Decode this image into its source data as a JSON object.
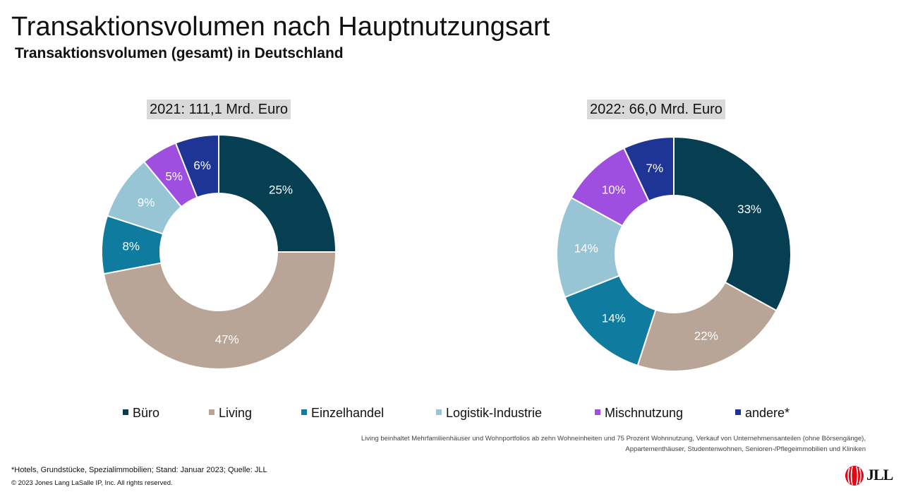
{
  "header": {
    "title": "Transaktionsvolumen nach Hauptnutzungsart",
    "subtitle": "Transaktionsvolumen (gesamt) in Deutschland"
  },
  "chart_data": [
    {
      "type": "pie",
      "donut": true,
      "title": "2021: 111,1 Mrd. Euro",
      "categories": [
        "Büro",
        "Living",
        "Einzelhandel",
        "Logistik-Industrie",
        "Mischnutzung",
        "andere*"
      ],
      "values": [
        25,
        47,
        8,
        9,
        5,
        6
      ],
      "labels": [
        "25%",
        "47%",
        "8%",
        "9%",
        "5%",
        "6%"
      ],
      "unit": "%"
    },
    {
      "type": "pie",
      "donut": true,
      "title": "2022: 66,0 Mrd. Euro",
      "categories": [
        "Büro",
        "Living",
        "Einzelhandel",
        "Logistik-Industrie",
        "Mischnutzung",
        "andere*"
      ],
      "values": [
        33,
        22,
        14,
        14,
        10,
        7
      ],
      "labels": [
        "33%",
        "22%",
        "14%",
        "14%",
        "10%",
        "7%"
      ],
      "unit": "%"
    }
  ],
  "legend": {
    "placement": "bottom",
    "items": [
      {
        "label": "Büro",
        "color": "#063f52"
      },
      {
        "label": "Living",
        "color": "#b9a597"
      },
      {
        "label": "Einzelhandel",
        "color": "#0f7b9e"
      },
      {
        "label": "Logistik-Industrie",
        "color": "#97c5d5"
      },
      {
        "label": "Mischnutzung",
        "color": "#9e4fe0"
      },
      {
        "label": "andere*",
        "color": "#1e3596"
      }
    ]
  },
  "note": {
    "line1": "Living beinhaltet Mehrfamilienhäuser und Wohnportfolios ab zehn Wohneinheiten und 75 Prozent Wohnnutzung, Verkauf von Unternehmensanteilen (ohne Börsengänge),",
    "line2": "Appartementhäuser, Studentenwohnen, Senioren-/Pflegeimmobilien und Kliniken"
  },
  "footer": {
    "footnote": "*Hotels, Grundstücke, Spezialimmobilien; Stand: Januar 2023; Quelle: JLL",
    "copyright": "© 2023 Jones Lang LaSalle IP, Inc. All rights reserved.",
    "logo_text": "JLL",
    "logo_color": "#e30613"
  }
}
